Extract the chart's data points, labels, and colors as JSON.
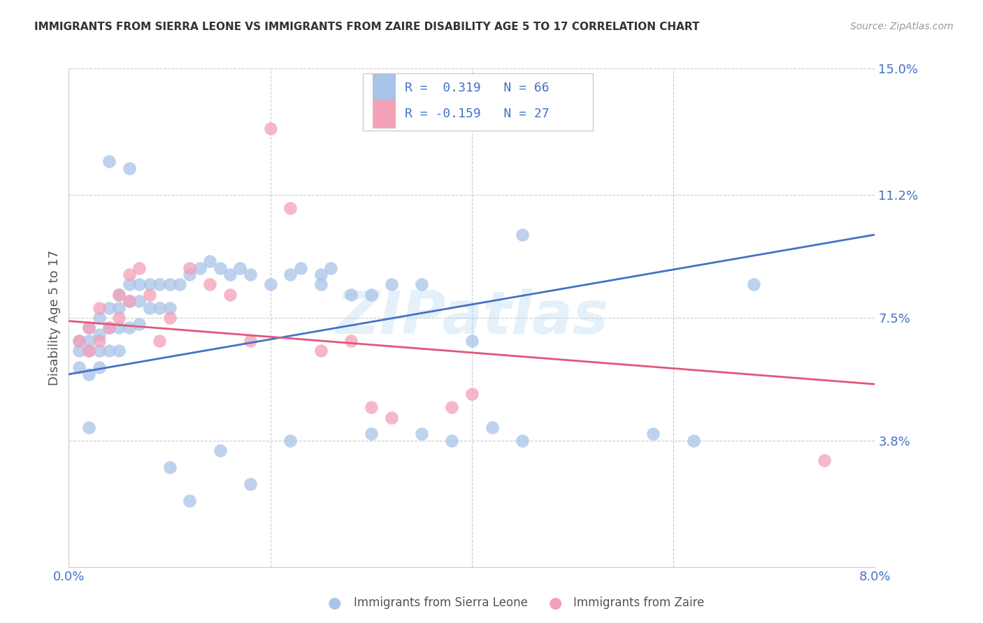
{
  "title": "IMMIGRANTS FROM SIERRA LEONE VS IMMIGRANTS FROM ZAIRE DISABILITY AGE 5 TO 17 CORRELATION CHART",
  "source": "Source: ZipAtlas.com",
  "ylabel": "Disability Age 5 to 17",
  "yticks": [
    0.0,
    0.038,
    0.075,
    0.112,
    0.15
  ],
  "ytick_labels": [
    "",
    "3.8%",
    "7.5%",
    "11.2%",
    "15.0%"
  ],
  "xticks": [
    0.0,
    0.02,
    0.04,
    0.06,
    0.08
  ],
  "xtick_labels": [
    "0.0%",
    "",
    "",
    "",
    "8.0%"
  ],
  "xlim": [
    0.0,
    0.08
  ],
  "ylim": [
    0.0,
    0.15
  ],
  "sierra_leone_color": "#a8c4e8",
  "zaire_color": "#f4a0b8",
  "sierra_leone_line_color": "#4472c4",
  "zaire_line_color": "#e05878",
  "watermark": "ZIPatlas",
  "sl_line_x0": 0.0,
  "sl_line_y0": 0.058,
  "sl_line_x1": 0.08,
  "sl_line_y1": 0.1,
  "z_line_x0": 0.0,
  "z_line_y0": 0.074,
  "z_line_x1": 0.08,
  "z_line_y1": 0.055,
  "sierra_leone_x": [
    0.001,
    0.001,
    0.001,
    0.002,
    0.002,
    0.002,
    0.002,
    0.003,
    0.003,
    0.003,
    0.003,
    0.004,
    0.004,
    0.004,
    0.005,
    0.005,
    0.005,
    0.005,
    0.006,
    0.006,
    0.006,
    0.007,
    0.007,
    0.007,
    0.008,
    0.008,
    0.009,
    0.009,
    0.01,
    0.01,
    0.011,
    0.012,
    0.013,
    0.014,
    0.015,
    0.016,
    0.017,
    0.018,
    0.02,
    0.022,
    0.023,
    0.025,
    0.026,
    0.028,
    0.03,
    0.032,
    0.035,
    0.038,
    0.042,
    0.045,
    0.04,
    0.03,
    0.022,
    0.015,
    0.01,
    0.006,
    0.004,
    0.002,
    0.058,
    0.062,
    0.068,
    0.045,
    0.035,
    0.025,
    0.018,
    0.012
  ],
  "sierra_leone_y": [
    0.065,
    0.068,
    0.06,
    0.072,
    0.068,
    0.065,
    0.058,
    0.075,
    0.07,
    0.065,
    0.06,
    0.078,
    0.072,
    0.065,
    0.082,
    0.078,
    0.072,
    0.065,
    0.085,
    0.08,
    0.072,
    0.085,
    0.08,
    0.073,
    0.085,
    0.078,
    0.085,
    0.078,
    0.085,
    0.078,
    0.085,
    0.088,
    0.09,
    0.092,
    0.09,
    0.088,
    0.09,
    0.088,
    0.085,
    0.088,
    0.09,
    0.088,
    0.09,
    0.082,
    0.082,
    0.085,
    0.04,
    0.038,
    0.042,
    0.038,
    0.068,
    0.04,
    0.038,
    0.035,
    0.03,
    0.12,
    0.122,
    0.042,
    0.04,
    0.038,
    0.085,
    0.1,
    0.085,
    0.085,
    0.025,
    0.02
  ],
  "zaire_x": [
    0.001,
    0.002,
    0.002,
    0.003,
    0.003,
    0.004,
    0.005,
    0.005,
    0.006,
    0.006,
    0.007,
    0.008,
    0.009,
    0.01,
    0.012,
    0.014,
    0.016,
    0.018,
    0.02,
    0.022,
    0.025,
    0.028,
    0.03,
    0.032,
    0.038,
    0.04,
    0.075
  ],
  "zaire_y": [
    0.068,
    0.072,
    0.065,
    0.078,
    0.068,
    0.072,
    0.082,
    0.075,
    0.088,
    0.08,
    0.09,
    0.082,
    0.068,
    0.075,
    0.09,
    0.085,
    0.082,
    0.068,
    0.132,
    0.108,
    0.065,
    0.068,
    0.048,
    0.045,
    0.048,
    0.052,
    0.032
  ]
}
